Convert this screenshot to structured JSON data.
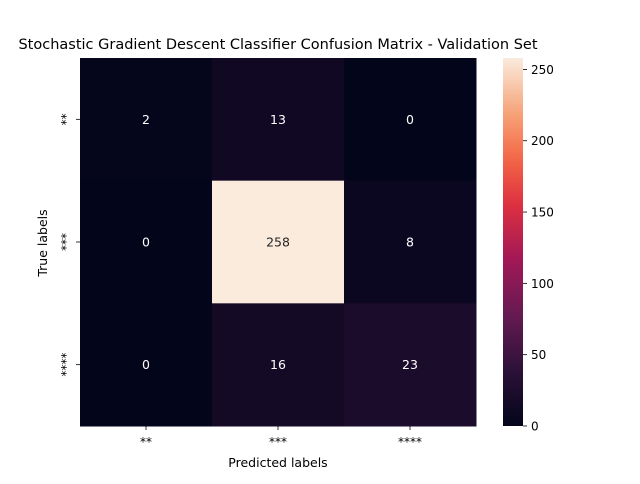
{
  "chart_data": {
    "type": "heatmap",
    "title": "Stochastic Gradient Descent Classifier Confusion Matrix - Validation Set",
    "xlabel": "Predicted labels",
    "ylabel": "True labels",
    "x_categories": [
      "**",
      "***",
      "****"
    ],
    "y_categories": [
      "**",
      "***",
      "****"
    ],
    "values": [
      [
        2,
        13,
        0
      ],
      [
        0,
        258,
        8
      ],
      [
        0,
        16,
        23
      ]
    ],
    "colorbar": {
      "min": 0,
      "max": 258,
      "ticks": [
        0,
        50,
        100,
        150,
        200,
        250
      ]
    },
    "colormap": "rocket",
    "grid": false
  }
}
